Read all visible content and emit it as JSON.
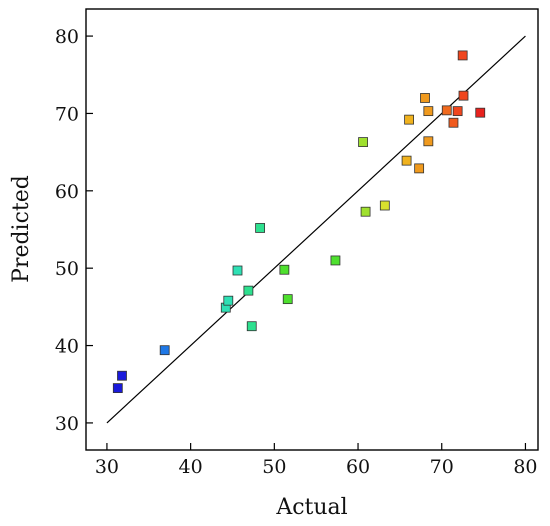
{
  "chart_data": {
    "type": "scatter",
    "xlabel": "Actual",
    "ylabel": "Predicted",
    "xlim": [
      27.5,
      81.5
    ],
    "ylim": [
      26.5,
      83.5
    ],
    "xticks": [
      30,
      40,
      50,
      60,
      70,
      80
    ],
    "yticks": [
      30,
      40,
      50,
      60,
      70,
      80
    ],
    "grid": false,
    "reference_line": {
      "from": [
        30,
        30
      ],
      "to": [
        80,
        80
      ],
      "color": "#000000"
    },
    "points": [
      {
        "x": 31.3,
        "y": 34.5,
        "color": "#1a1adb"
      },
      {
        "x": 31.8,
        "y": 36.1,
        "color": "#1a1adb"
      },
      {
        "x": 36.9,
        "y": 39.4,
        "color": "#1f78e6"
      },
      {
        "x": 44.2,
        "y": 44.9,
        "color": "#2ee0b4"
      },
      {
        "x": 44.5,
        "y": 45.8,
        "color": "#2ee0b4"
      },
      {
        "x": 45.6,
        "y": 49.7,
        "color": "#2ee0b4"
      },
      {
        "x": 46.9,
        "y": 47.1,
        "color": "#2ee08f"
      },
      {
        "x": 47.3,
        "y": 42.5,
        "color": "#2ee08f"
      },
      {
        "x": 48.3,
        "y": 55.2,
        "color": "#2ee08f"
      },
      {
        "x": 51.2,
        "y": 49.8,
        "color": "#4ee02e"
      },
      {
        "x": 51.6,
        "y": 46.0,
        "color": "#4ee02e"
      },
      {
        "x": 57.3,
        "y": 51.0,
        "color": "#4ee02e"
      },
      {
        "x": 60.6,
        "y": 66.3,
        "color": "#9fe02e"
      },
      {
        "x": 60.9,
        "y": 57.3,
        "color": "#9fe02e"
      },
      {
        "x": 63.2,
        "y": 58.1,
        "color": "#d8e02e"
      },
      {
        "x": 65.8,
        "y": 63.9,
        "color": "#f0b21e"
      },
      {
        "x": 66.1,
        "y": 69.2,
        "color": "#f0b21e"
      },
      {
        "x": 67.3,
        "y": 62.9,
        "color": "#f09a1e"
      },
      {
        "x": 68.0,
        "y": 72.0,
        "color": "#f09a1e"
      },
      {
        "x": 68.4,
        "y": 70.3,
        "color": "#f09a1e"
      },
      {
        "x": 68.4,
        "y": 66.4,
        "color": "#f09a1e"
      },
      {
        "x": 70.6,
        "y": 70.4,
        "color": "#f06a1e"
      },
      {
        "x": 71.4,
        "y": 68.8,
        "color": "#f05a1e"
      },
      {
        "x": 71.9,
        "y": 70.3,
        "color": "#f0461e"
      },
      {
        "x": 72.5,
        "y": 77.5,
        "color": "#f0461e"
      },
      {
        "x": 72.6,
        "y": 72.3,
        "color": "#f0461e"
      },
      {
        "x": 74.6,
        "y": 70.1,
        "color": "#e8221e"
      }
    ]
  }
}
